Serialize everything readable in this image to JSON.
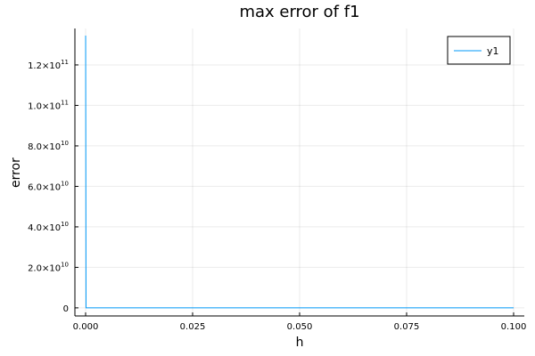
{
  "chart_data": {
    "type": "line",
    "title": "max error of f1",
    "xlabel": "h",
    "ylabel": "error",
    "xlim": [
      -0.0025,
      0.1025
    ],
    "ylim": [
      -4000000000,
      138000000000
    ],
    "xticks": [
      {
        "value": 0.0,
        "label": "0.000"
      },
      {
        "value": 0.025,
        "label": "0.025"
      },
      {
        "value": 0.05,
        "label": "0.050"
      },
      {
        "value": 0.075,
        "label": "0.075"
      },
      {
        "value": 0.1,
        "label": "0.100"
      }
    ],
    "yticks": [
      {
        "value": 0,
        "mantissa": "0",
        "exp": ""
      },
      {
        "value": 20000000000,
        "mantissa": "2.0×10",
        "exp": "10"
      },
      {
        "value": 40000000000,
        "mantissa": "4.0×10",
        "exp": "10"
      },
      {
        "value": 60000000000,
        "mantissa": "6.0×10",
        "exp": "10"
      },
      {
        "value": 80000000000,
        "mantissa": "8.0×10",
        "exp": "10"
      },
      {
        "value": 100000000000,
        "mantissa": "1.0×10",
        "exp": "11"
      },
      {
        "value": 120000000000,
        "mantissa": "1.2×10",
        "exp": "11"
      }
    ],
    "grid": true,
    "legend_position": "top-right",
    "series": [
      {
        "name": "y1",
        "color": "#009af9",
        "x": [
          1e-05,
          0.0001,
          0.0002,
          0.001,
          0.01,
          0.02,
          0.03,
          0.04,
          0.05,
          0.06,
          0.07,
          0.08,
          0.09,
          0.1
        ],
        "y": [
          134500000000,
          0,
          0,
          0,
          0,
          0,
          0,
          0,
          0,
          0,
          0,
          0,
          0,
          0
        ]
      }
    ]
  }
}
